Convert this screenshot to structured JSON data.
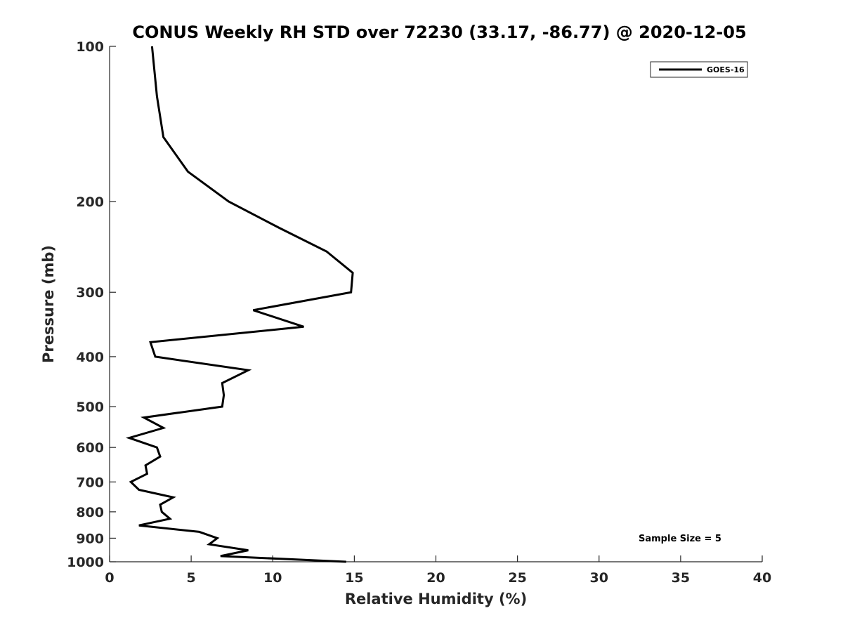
{
  "chart_data": {
    "type": "line",
    "title": "CONUS Weekly RH STD over 72230 (33.17, -86.77) @ 2020-12-05",
    "xlabel": "Relative Humidity (%)",
    "ylabel": "Pressure (mb)",
    "xlim": [
      0,
      40
    ],
    "ylim": [
      100,
      1000
    ],
    "yscale": "log",
    "x_ticks": [
      0,
      5,
      10,
      15,
      20,
      25,
      30,
      35,
      40
    ],
    "y_ticks": [
      100,
      200,
      300,
      400,
      500,
      600,
      700,
      800,
      900,
      1000
    ],
    "legend_position": "top-right",
    "annotation": "Sample Size = 5",
    "series": [
      {
        "name": "GOES-16",
        "color": "#000000",
        "points": [
          {
            "x": 2.6,
            "y": 100
          },
          {
            "x": 2.9,
            "y": 125
          },
          {
            "x": 3.3,
            "y": 150
          },
          {
            "x": 4.8,
            "y": 175
          },
          {
            "x": 7.3,
            "y": 200
          },
          {
            "x": 10.4,
            "y": 225
          },
          {
            "x": 13.3,
            "y": 250
          },
          {
            "x": 14.9,
            "y": 275
          },
          {
            "x": 14.8,
            "y": 300
          },
          {
            "x": 8.8,
            "y": 325
          },
          {
            "x": 11.9,
            "y": 350
          },
          {
            "x": 2.5,
            "y": 375
          },
          {
            "x": 2.8,
            "y": 400
          },
          {
            "x": 8.5,
            "y": 425
          },
          {
            "x": 6.9,
            "y": 450
          },
          {
            "x": 7.0,
            "y": 475
          },
          {
            "x": 6.9,
            "y": 500
          },
          {
            "x": 2.1,
            "y": 525
          },
          {
            "x": 3.3,
            "y": 550
          },
          {
            "x": 1.2,
            "y": 575
          },
          {
            "x": 2.9,
            "y": 600
          },
          {
            "x": 3.1,
            "y": 625
          },
          {
            "x": 2.2,
            "y": 650
          },
          {
            "x": 2.3,
            "y": 675
          },
          {
            "x": 1.3,
            "y": 700
          },
          {
            "x": 1.8,
            "y": 725
          },
          {
            "x": 3.9,
            "y": 750
          },
          {
            "x": 3.1,
            "y": 775
          },
          {
            "x": 3.2,
            "y": 800
          },
          {
            "x": 3.7,
            "y": 825
          },
          {
            "x": 1.8,
            "y": 850
          },
          {
            "x": 5.5,
            "y": 875
          },
          {
            "x": 6.6,
            "y": 900
          },
          {
            "x": 6.1,
            "y": 925
          },
          {
            "x": 8.5,
            "y": 950
          },
          {
            "x": 6.8,
            "y": 975
          },
          {
            "x": 14.5,
            "y": 1000
          }
        ]
      }
    ]
  }
}
